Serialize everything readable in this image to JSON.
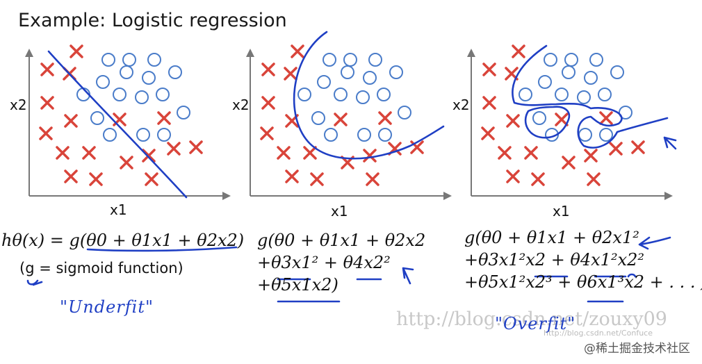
{
  "title": "Example: Logistic regression",
  "colors": {
    "cross": "#d9443a",
    "circle": "#4a7cc9",
    "ink": "#1f3fc4",
    "axis": "#777777"
  },
  "panels": [
    {
      "id": "underfit",
      "y_label": "x2",
      "x_label": "x1",
      "formula_lines": [
        "hθ(x) = g(θ0 + θ1x1 + θ2x2)"
      ],
      "note": "(g = sigmoid function)",
      "hand_label": "\"Underfit\"",
      "chart_data": {
        "type": "scatter",
        "xlabel": "x1",
        "ylabel": "x2",
        "series": [
          {
            "marker": "x"
          },
          {
            "marker": "o"
          }
        ]
      }
    },
    {
      "id": "justright",
      "y_label": "x2",
      "x_label": "x1",
      "formula_lines": [
        "g(θ0 + θ1x1 + θ2x2",
        "+θ3x1² + θ4x2²",
        "+θ5x1x2)"
      ],
      "chart_data": {
        "type": "scatter",
        "xlabel": "x1",
        "ylabel": "x2",
        "series": [
          {
            "marker": "x"
          },
          {
            "marker": "o"
          }
        ]
      }
    },
    {
      "id": "overfit",
      "y_label": "x2",
      "x_label": "x1",
      "formula_lines": [
        "g(θ0 + θ1x1 + θ2x1²",
        "+θ3x1²x2 + θ4x1²x2²",
        "+θ5x1²x2³ + θ6x1³x2 + . . . )"
      ],
      "hand_label": "\"Overfit\"",
      "chart_data": {
        "type": "scatter",
        "xlabel": "x1",
        "ylabel": "x2",
        "series": [
          {
            "marker": "x"
          },
          {
            "marker": "o"
          }
        ]
      }
    }
  ],
  "watermarks": [
    "http://blog.csdn.net/zouxy09",
    "http://blog.csdn.net/Confuce",
    "@稀土掘金技术社区"
  ]
}
